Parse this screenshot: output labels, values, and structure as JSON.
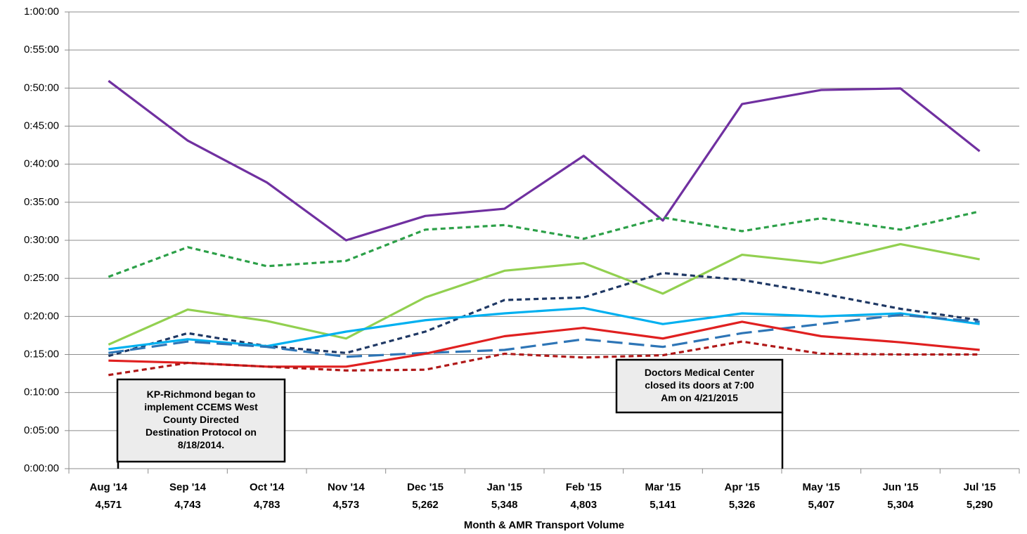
{
  "chart_data": {
    "type": "line",
    "x_label": "Month & AMR Transport Volume",
    "categories": [
      "Aug '14",
      "Sep '14",
      "Oct '14",
      "Nov '14",
      "Dec '15",
      "Jan '15",
      "Feb '15",
      "Mar '15",
      "Apr '15",
      "May '15",
      "Jun '15",
      "Jul '15"
    ],
    "category_sublabels": [
      "4,571",
      "4,743",
      "4,783",
      "4,573",
      "5,262",
      "5,348",
      "4,803",
      "5,141",
      "5,326",
      "5,407",
      "5,304",
      "5,290"
    ],
    "ylim": [
      0,
      60
    ],
    "yticks": [
      {
        "value": 0,
        "label": "0:00:00"
      },
      {
        "value": 5,
        "label": "0:05:00"
      },
      {
        "value": 10,
        "label": "0:10:00"
      },
      {
        "value": 15,
        "label": "0:15:00"
      },
      {
        "value": 20,
        "label": "0:20:00"
      },
      {
        "value": 25,
        "label": "0:25:00"
      },
      {
        "value": 30,
        "label": "0:30:00"
      },
      {
        "value": 35,
        "label": "0:35:00"
      },
      {
        "value": 40,
        "label": "0:40:00"
      },
      {
        "value": 45,
        "label": "0:45:00"
      },
      {
        "value": 50,
        "label": "0:50:00"
      },
      {
        "value": 55,
        "label": "0:55:00"
      },
      {
        "value": 60,
        "label": "1:00:00"
      }
    ],
    "grid": true,
    "series": [
      {
        "color": "#7030a0",
        "dash": "solid",
        "values": [
          50.95,
          43.1,
          37.6,
          30.0,
          33.2,
          34.15,
          41.1,
          32.6,
          47.9,
          49.75,
          49.95,
          41.7
        ]
      },
      {
        "color": "#2ca048",
        "dash": "short",
        "values": [
          25.2,
          29.1,
          26.6,
          27.3,
          31.4,
          32.0,
          30.2,
          33.0,
          31.2,
          32.9,
          31.4,
          33.8
        ]
      },
      {
        "color": "#92d050",
        "dash": "solid",
        "values": [
          16.3,
          20.9,
          19.4,
          17.1,
          22.5,
          26.0,
          27.0,
          23.0,
          28.1,
          27.0,
          29.5,
          27.5
        ]
      },
      {
        "color": "#1f3864",
        "dash": "short",
        "values": [
          14.8,
          17.8,
          16.1,
          15.2,
          18.0,
          22.15,
          22.5,
          25.7,
          24.8,
          23.0,
          21.0,
          19.5
        ]
      },
      {
        "color": "#00b0f0",
        "dash": "solid",
        "values": [
          15.7,
          17.0,
          16.1,
          18.0,
          19.5,
          20.4,
          21.1,
          19.0,
          20.4,
          20.0,
          20.4,
          19.0
        ]
      },
      {
        "color": "#2e75b6",
        "dash": "long",
        "values": [
          15.2,
          16.7,
          16.0,
          14.7,
          15.2,
          15.6,
          17.0,
          16.0,
          17.8,
          19.0,
          20.2,
          19.3
        ]
      },
      {
        "color": "#e02020",
        "dash": "solid",
        "values": [
          14.2,
          13.9,
          13.4,
          13.4,
          15.1,
          17.4,
          18.5,
          17.1,
          19.3,
          17.4,
          16.6,
          15.6
        ]
      },
      {
        "color": "#b01818",
        "dash": "short",
        "values": [
          12.3,
          13.9,
          13.4,
          12.9,
          13.0,
          15.1,
          14.6,
          14.9,
          16.7,
          15.1,
          15.0,
          15.0
        ]
      }
    ],
    "annotations": [
      {
        "lines": [
          "KP-Richmond began to",
          "implement CCEMS West",
          "County Directed",
          "Destination Protocol on",
          "8/18/2014."
        ]
      },
      {
        "lines": [
          "Doctors Medical Center",
          "closed its doors at 7:00",
          "Am on 4/21/2015"
        ]
      }
    ]
  }
}
